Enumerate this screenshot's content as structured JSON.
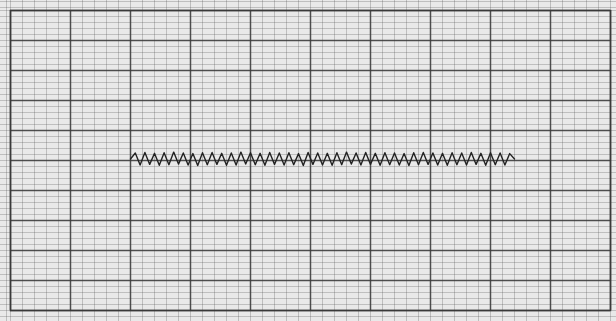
{
  "chart_data": {
    "type": "line",
    "x": [
      2,
      2.08,
      2.16,
      2.24,
      2.32,
      2.4,
      2.48,
      2.56,
      2.64,
      2.72,
      2.8,
      2.88,
      2.96,
      3.04,
      3.12,
      3.2,
      3.28,
      3.36,
      3.44,
      3.52,
      3.6,
      3.68,
      3.76,
      3.84,
      3.92,
      4,
      4.08,
      4.16,
      4.24,
      4.32,
      4.4,
      4.48,
      4.56,
      4.64,
      4.72,
      4.8,
      4.88,
      4.96,
      5.04,
      5.12,
      5.2,
      5.28,
      5.36,
      5.44,
      5.52,
      5.6,
      5.68,
      5.76,
      5.84,
      5.92,
      6,
      6.08,
      6.16,
      6.24,
      6.32,
      6.4,
      6.48,
      6.56,
      6.64,
      6.72,
      6.8,
      6.88,
      6.96,
      7.04,
      7.12,
      7.2,
      7.28,
      7.36,
      7.44,
      7.52,
      7.6,
      7.68,
      7.76,
      7.84,
      7.92,
      8,
      8.08,
      8.16,
      8.24,
      8.32,
      8.4
    ],
    "values": [
      0.05,
      0.25,
      -0.15,
      0.27,
      -0.13,
      0.24,
      -0.16,
      0.26,
      -0.14,
      0.28,
      -0.12,
      0.25,
      -0.15,
      0.23,
      -0.17,
      0.26,
      -0.14,
      0.27,
      -0.13,
      0.24,
      -0.16,
      0.25,
      -0.15,
      0.28,
      -0.12,
      0.26,
      -0.14,
      0.24,
      -0.16,
      0.27,
      -0.13,
      0.25,
      -0.15,
      0.26,
      -0.14,
      0.23,
      -0.17,
      0.27,
      -0.13,
      0.25,
      -0.15,
      0.24,
      -0.16,
      0.26,
      -0.14,
      0.28,
      -0.12,
      0.25,
      -0.15,
      0.27,
      -0.13,
      0.24,
      -0.16,
      0.26,
      -0.14,
      0.25,
      -0.15,
      0.23,
      -0.17,
      0.26,
      -0.14,
      0.27,
      -0.13,
      0.25,
      -0.15,
      0.24,
      -0.16,
      0.26,
      -0.14,
      0.25,
      -0.15,
      0.27,
      -0.13,
      0.24,
      -0.16,
      0.26,
      -0.14,
      0.25,
      -0.15,
      0.23,
      0.05
    ],
    "color": "#222222",
    "xlim": [
      0,
      10
    ],
    "xticks": [
      0,
      1,
      2,
      3,
      4,
      5,
      6,
      7,
      8,
      9,
      10
    ],
    "ylim": [
      -5,
      5
    ],
    "yticks": [
      -5,
      -4,
      -3,
      -2,
      -1,
      0,
      1,
      2,
      3,
      4,
      5
    ],
    "grid": true,
    "tick_labels": false
  }
}
